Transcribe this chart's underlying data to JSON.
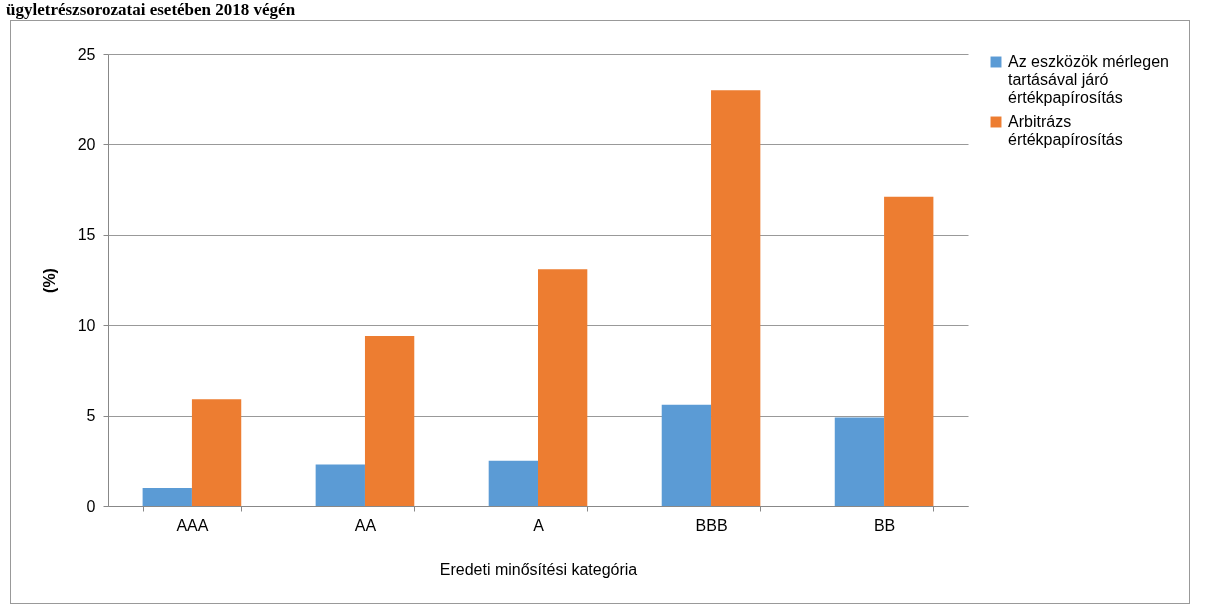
{
  "chart_data": {
    "type": "bar",
    "title": "ügyletrészsorozatai esetében 2018 végén",
    "xlabel": "Eredeti minősítési kategória",
    "ylabel": "(%)",
    "categories": [
      "AAA",
      "AA",
      "A",
      "BBB",
      "BB"
    ],
    "series": [
      {
        "name": "Az eszközök mérlegen tartásával járó értékpapírosítás",
        "color": "#5b9bd5",
        "values": [
          1.0,
          2.3,
          2.5,
          5.6,
          4.9
        ]
      },
      {
        "name": "Arbitrázs értékpapírosítás",
        "color": "#ed7d31",
        "values": [
          5.9,
          9.4,
          13.1,
          23.0,
          17.1
        ]
      }
    ],
    "ylim": [
      0,
      25
    ],
    "yticks": [
      0,
      5,
      10,
      15,
      20,
      25
    ],
    "grid": "y",
    "legend": "right"
  }
}
